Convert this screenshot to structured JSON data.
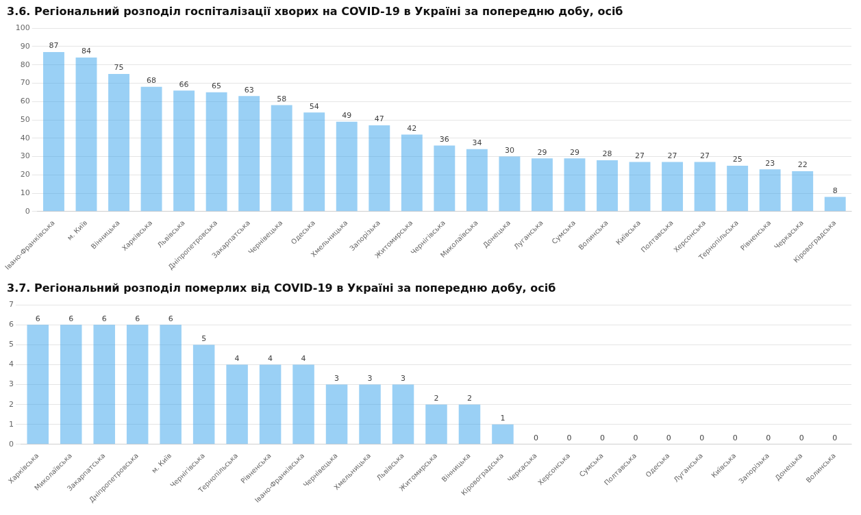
{
  "chart_data": [
    {
      "type": "bar",
      "title": "3.6. Регіональний розподіл госпіталізації хворих на COVID-19 в Україні за попередню добу, осіб",
      "categories": [
        "Івано-Франківська",
        "м. Київ",
        "Вінницька",
        "Харківська",
        "Львівська",
        "Дніпропетровська",
        "Закарпатська",
        "Чернівецька",
        "Одеська",
        "Хмельницька",
        "Запорізька",
        "Житомирська",
        "Чернігівська",
        "Миколаївська",
        "Донецька",
        "Луганська",
        "Сумська",
        "Волинська",
        "Київська",
        "Полтавська",
        "Херсонська",
        "Тернопільська",
        "Рівненська",
        "Черкаська",
        "Кіровоградська"
      ],
      "values": [
        87,
        84,
        75,
        68,
        66,
        65,
        63,
        58,
        54,
        49,
        47,
        42,
        36,
        34,
        30,
        29,
        29,
        28,
        27,
        27,
        27,
        25,
        23,
        22,
        8
      ],
      "ylim": [
        0,
        100
      ],
      "yticks": [
        0,
        10,
        20,
        30,
        40,
        50,
        60,
        70,
        80,
        90,
        100
      ],
      "grid": true,
      "data_labels": true
    },
    {
      "type": "bar",
      "title": "3.7. Регіональний розподіл померлих від COVID-19 в Україні за попередню добу, осіб",
      "categories": [
        "Харківська",
        "Миколаївська",
        "Закарпатська",
        "Дніпропетровська",
        "м. Київ",
        "Чернігівська",
        "Тернопільська",
        "Рівненська",
        "Івано-Франківська",
        "Чернівецька",
        "Хмельницька",
        "Львівська",
        "Житомирська",
        "Вінницька",
        "Кіровоградська",
        "Черкаська",
        "Херсонська",
        "Сумська",
        "Полтавська",
        "Одеська",
        "Луганська",
        "Київська",
        "Запорізька",
        "Донецька",
        "Волинська"
      ],
      "values": [
        6,
        6,
        6,
        6,
        6,
        5,
        4,
        4,
        4,
        3,
        3,
        3,
        2,
        2,
        1,
        0,
        0,
        0,
        0,
        0,
        0,
        0,
        0,
        0,
        0
      ],
      "ylim": [
        0,
        7
      ],
      "yticks": [
        0,
        1,
        2,
        3,
        4,
        5,
        6,
        7
      ],
      "grid": true,
      "data_labels": true
    }
  ]
}
